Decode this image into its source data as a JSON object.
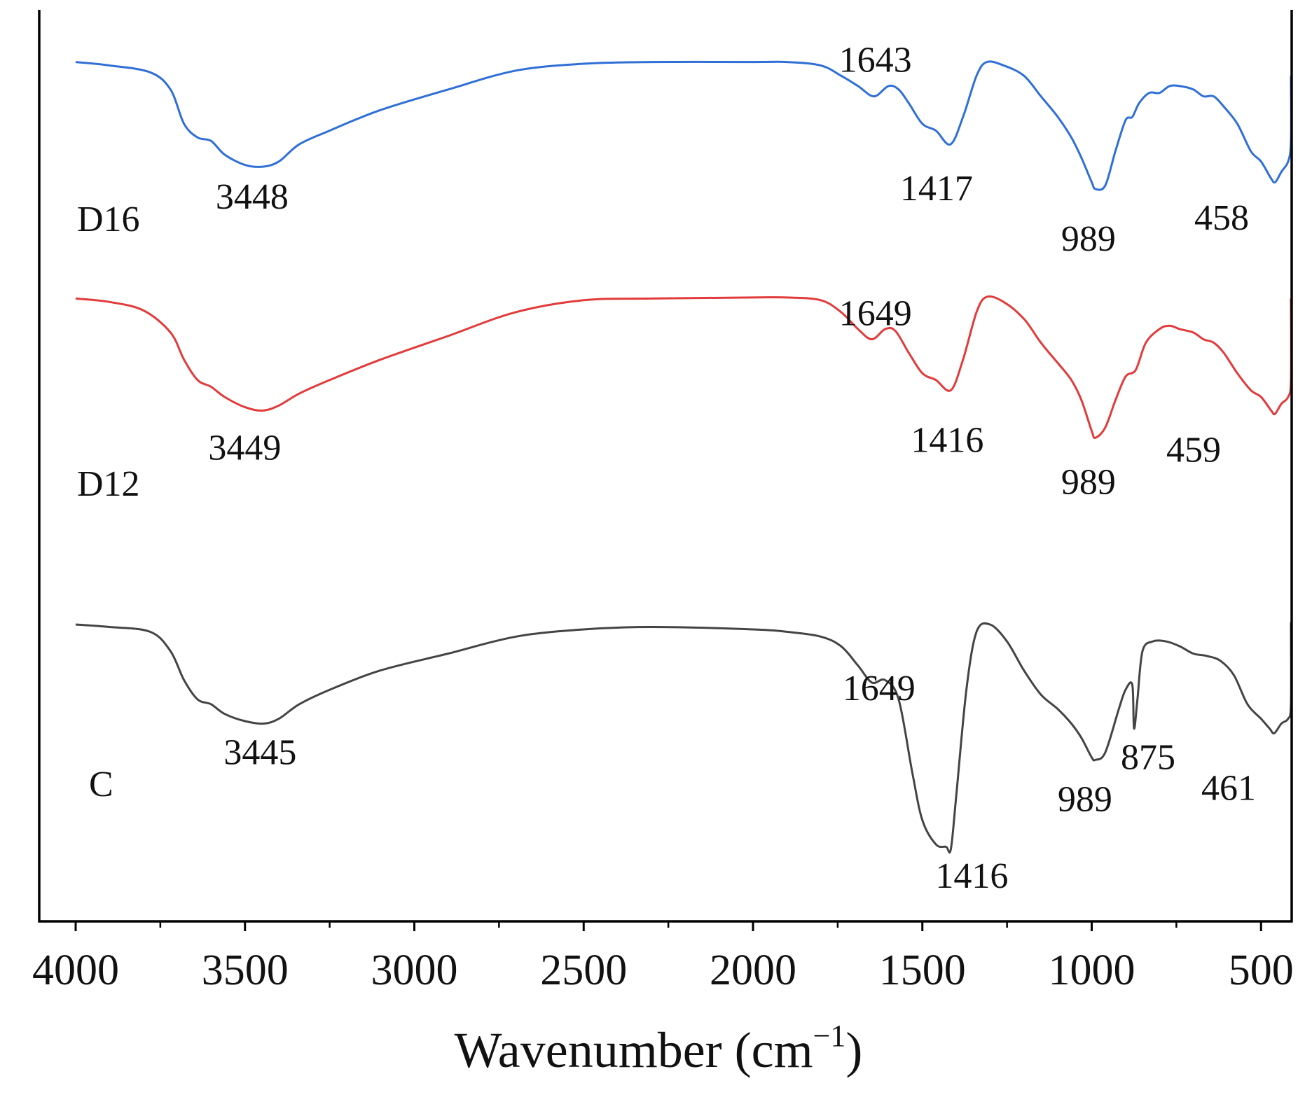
{
  "chart_data": {
    "type": "line",
    "title": "",
    "xlabel": "Wavenumber (cm",
    "xlabel_sup": "−1",
    "xlabel_close": ")",
    "ylabel": "",
    "xlim": [
      4000,
      400
    ],
    "x_reversed": true,
    "xticks": [
      4000,
      3500,
      3000,
      2500,
      2000,
      1500,
      1000,
      500
    ],
    "xtick_labels": [
      "4000",
      "3500",
      "3000",
      "2500",
      "2000",
      "1500",
      "1000",
      "500"
    ],
    "ylim": [
      0,
      100
    ],
    "grid": false,
    "legend": "none",
    "series": [
      {
        "name": "D16",
        "color": "#2f6fd6",
        "points": [
          [
            4000,
            96
          ],
          [
            3900,
            95
          ],
          [
            3780,
            93
          ],
          [
            3720,
            88
          ],
          [
            3680,
            78
          ],
          [
            3640,
            74
          ],
          [
            3600,
            73
          ],
          [
            3560,
            69
          ],
          [
            3500,
            66
          ],
          [
            3448,
            65.5
          ],
          [
            3400,
            67
          ],
          [
            3340,
            72
          ],
          [
            3250,
            76
          ],
          [
            3100,
            82
          ],
          [
            2900,
            88
          ],
          [
            2700,
            93.5
          ],
          [
            2500,
            95.5
          ],
          [
            2300,
            96
          ],
          [
            2000,
            96
          ],
          [
            1900,
            96
          ],
          [
            1800,
            95
          ],
          [
            1740,
            92
          ],
          [
            1690,
            89
          ],
          [
            1643,
            86
          ],
          [
            1600,
            89
          ],
          [
            1570,
            88
          ],
          [
            1540,
            84
          ],
          [
            1500,
            78
          ],
          [
            1460,
            76
          ],
          [
            1417,
            72
          ],
          [
            1380,
            80
          ],
          [
            1340,
            92
          ],
          [
            1310,
            96
          ],
          [
            1260,
            95
          ],
          [
            1200,
            92
          ],
          [
            1150,
            86
          ],
          [
            1100,
            80
          ],
          [
            1060,
            74
          ],
          [
            1030,
            68
          ],
          [
            1000,
            61
          ],
          [
            989,
            59
          ],
          [
            960,
            60
          ],
          [
            930,
            70
          ],
          [
            900,
            79
          ],
          [
            880,
            80
          ],
          [
            860,
            84
          ],
          [
            830,
            87
          ],
          [
            800,
            87
          ],
          [
            770,
            89
          ],
          [
            740,
            89
          ],
          [
            700,
            88
          ],
          [
            670,
            86
          ],
          [
            640,
            86
          ],
          [
            610,
            83
          ],
          [
            570,
            78
          ],
          [
            530,
            70
          ],
          [
            500,
            67
          ],
          [
            470,
            62
          ],
          [
            458,
            61
          ],
          [
            440,
            64
          ],
          [
            420,
            67
          ],
          [
            405,
            73
          ],
          [
            400,
            92
          ]
        ]
      },
      {
        "name": "D12",
        "color": "#e23b3b",
        "points": [
          [
            4000,
            96
          ],
          [
            3900,
            95
          ],
          [
            3800,
            92.5
          ],
          [
            3720,
            86
          ],
          [
            3680,
            78
          ],
          [
            3640,
            72
          ],
          [
            3600,
            70
          ],
          [
            3560,
            67
          ],
          [
            3500,
            64
          ],
          [
            3449,
            63
          ],
          [
            3400,
            64.5
          ],
          [
            3340,
            68
          ],
          [
            3250,
            72
          ],
          [
            3100,
            78
          ],
          [
            2900,
            85
          ],
          [
            2700,
            92
          ],
          [
            2500,
            95.5
          ],
          [
            2300,
            96
          ],
          [
            2000,
            96.3
          ],
          [
            1900,
            96.3
          ],
          [
            1800,
            95.5
          ],
          [
            1740,
            92
          ],
          [
            1690,
            87
          ],
          [
            1649,
            84
          ],
          [
            1610,
            87
          ],
          [
            1580,
            86.5
          ],
          [
            1540,
            80
          ],
          [
            1500,
            74
          ],
          [
            1460,
            72
          ],
          [
            1416,
            69
          ],
          [
            1380,
            78
          ],
          [
            1340,
            92
          ],
          [
            1310,
            96.5
          ],
          [
            1260,
            95
          ],
          [
            1200,
            90
          ],
          [
            1150,
            83
          ],
          [
            1100,
            77
          ],
          [
            1060,
            72
          ],
          [
            1030,
            66
          ],
          [
            1000,
            57
          ],
          [
            989,
            55
          ],
          [
            960,
            58
          ],
          [
            930,
            66
          ],
          [
            900,
            73
          ],
          [
            870,
            75
          ],
          [
            840,
            83
          ],
          [
            800,
            87
          ],
          [
            770,
            88
          ],
          [
            740,
            87
          ],
          [
            700,
            86
          ],
          [
            670,
            84
          ],
          [
            640,
            83
          ],
          [
            610,
            80
          ],
          [
            570,
            74
          ],
          [
            530,
            69
          ],
          [
            500,
            67
          ],
          [
            470,
            63
          ],
          [
            459,
            62
          ],
          [
            440,
            65
          ],
          [
            420,
            67
          ],
          [
            405,
            72
          ],
          [
            400,
            96
          ]
        ]
      },
      {
        "name": "C",
        "color": "#444444",
        "points": [
          [
            4000,
            95.5
          ],
          [
            3900,
            95
          ],
          [
            3780,
            94
          ],
          [
            3720,
            90
          ],
          [
            3680,
            84
          ],
          [
            3640,
            80
          ],
          [
            3600,
            79
          ],
          [
            3560,
            77
          ],
          [
            3500,
            75.5
          ],
          [
            3445,
            75
          ],
          [
            3400,
            76
          ],
          [
            3340,
            79
          ],
          [
            3250,
            82
          ],
          [
            3100,
            86
          ],
          [
            2900,
            89.5
          ],
          [
            2700,
            93
          ],
          [
            2500,
            94.5
          ],
          [
            2300,
            95
          ],
          [
            2000,
            94.5
          ],
          [
            1900,
            94
          ],
          [
            1800,
            93
          ],
          [
            1740,
            91
          ],
          [
            1690,
            87
          ],
          [
            1649,
            83.5
          ],
          [
            1610,
            84
          ],
          [
            1570,
            80
          ],
          [
            1530,
            65
          ],
          [
            1500,
            55
          ],
          [
            1460,
            50
          ],
          [
            1430,
            49.5
          ],
          [
            1416,
            49
          ],
          [
            1400,
            60
          ],
          [
            1370,
            82
          ],
          [
            1340,
            94
          ],
          [
            1300,
            95.5
          ],
          [
            1250,
            92
          ],
          [
            1200,
            86
          ],
          [
            1150,
            81
          ],
          [
            1100,
            78
          ],
          [
            1060,
            75
          ],
          [
            1030,
            72
          ],
          [
            1000,
            68
          ],
          [
            989,
            67.5
          ],
          [
            960,
            69
          ],
          [
            920,
            78
          ],
          [
            900,
            82
          ],
          [
            880,
            83
          ],
          [
            875,
            74
          ],
          [
            865,
            80
          ],
          [
            850,
            90
          ],
          [
            820,
            92
          ],
          [
            780,
            92
          ],
          [
            740,
            91
          ],
          [
            700,
            89.5
          ],
          [
            660,
            89
          ],
          [
            620,
            88
          ],
          [
            580,
            85
          ],
          [
            540,
            79
          ],
          [
            500,
            76
          ],
          [
            475,
            74
          ],
          [
            461,
            73
          ],
          [
            440,
            75
          ],
          [
            420,
            76
          ],
          [
            405,
            79
          ],
          [
            400,
            96
          ]
        ]
      }
    ],
    "series_labels": [
      {
        "text": "D16",
        "series": "D16"
      },
      {
        "text": "D12",
        "series": "D12"
      },
      {
        "text": "C",
        "series": "C"
      }
    ],
    "annotations": [
      {
        "text": "3448",
        "series": "D16",
        "x": 3448
      },
      {
        "text": "1643",
        "series": "D16",
        "x": 1643
      },
      {
        "text": "1417",
        "series": "D16",
        "x": 1417
      },
      {
        "text": "989",
        "series": "D16",
        "x": 989
      },
      {
        "text": "458",
        "series": "D16",
        "x": 458
      },
      {
        "text": "3449",
        "series": "D12",
        "x": 3449
      },
      {
        "text": "1649",
        "series": "D12",
        "x": 1649
      },
      {
        "text": "1416",
        "series": "D12",
        "x": 1416
      },
      {
        "text": "989",
        "series": "D12",
        "x": 989
      },
      {
        "text": "459",
        "series": "D12",
        "x": 459
      },
      {
        "text": "3445",
        "series": "C",
        "x": 3445
      },
      {
        "text": "1649",
        "series": "C",
        "x": 1649
      },
      {
        "text": "1416",
        "series": "C",
        "x": 1416
      },
      {
        "text": "989",
        "series": "C",
        "x": 989
      },
      {
        "text": "875",
        "series": "C",
        "x": 875
      },
      {
        "text": "461",
        "series": "C",
        "x": 461
      }
    ]
  }
}
